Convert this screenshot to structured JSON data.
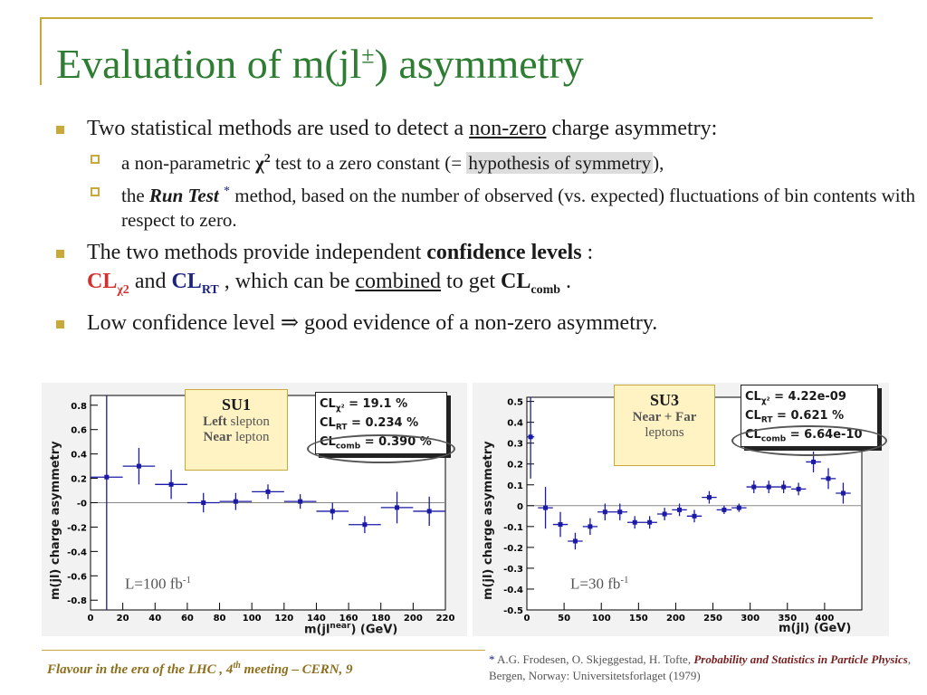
{
  "slide": {
    "title": "Evaluation of m(jl",
    "title_sup": "±",
    "title_end": ") asymmetry"
  },
  "bullets": {
    "b1_pre": "Two statistical methods are used to detect a ",
    "b1_ul": "non-zero",
    "b1_post": " charge asymmetry:",
    "s1_pre": "a non-parametric ",
    "s1_chi": "χ",
    "s1_sup": "2",
    "s1_mid": " test to a zero constant (= ",
    "s1_hl": "hypothesis of symmetry",
    "s1_post": "),",
    "s2_pre": "the ",
    "s2_bold": "Run Test",
    "s2_star": "*",
    "s2_post": " method, based on the number of observed (vs. expected) fluctuations of bin contents with respect to zero.",
    "b2_pre": "The two methods provide independent ",
    "b2_bold": "confidence levels",
    "b2_colon": " :",
    "b2_cl1": "CL",
    "b2_cl1_sub": "χ2",
    "b2_and": " and ",
    "b2_cl2": "CL",
    "b2_cl2_sub": "RT",
    "b2_mid": " , which can be ",
    "b2_ul": "combined",
    "b2_get": " to get ",
    "b2_cl3": "CL",
    "b2_cl3_sub": "comb",
    "b2_end": " .",
    "b3_pre": "Low confidence level ",
    "b3_arrow": "⇒",
    "b3_post": " good evidence of a non-zero asymmetry."
  },
  "panel1": {
    "ylabel": "m(jl) charge asymmetry",
    "xlabel": "m(jl",
    "xlabel_sup": "near",
    "xlabel_end": ")  (GeV)",
    "lumi": "L=100 fb",
    "lumi_sup": "-1",
    "su_title": "SU1",
    "su_line1_b": "Left",
    "su_line1": " slepton",
    "su_line2_b": "Near",
    "su_line2": " lepton",
    "cl_chi_label": "CL",
    "cl_chi_sub": "χ²",
    "cl_chi_val": " = 19.1 %",
    "cl_rt_label": "CL",
    "cl_rt_sub": "RT",
    "cl_rt_val": " = 0.234 %",
    "cl_comb_label": "CL",
    "cl_comb_sub": "comb",
    "cl_comb_val": " = 0.390 %"
  },
  "panel2": {
    "ylabel": "m(jl) charge asymmetry",
    "xlabel": "m(jl)  (GeV)",
    "lumi": "L=30 fb",
    "lumi_sup": "-1",
    "su_title": "SU3",
    "su_line1": "Near + Far",
    "su_line2": "leptons",
    "cl_chi_label": "CL",
    "cl_chi_sub": "χ²",
    "cl_chi_val": " = 4.22e-09",
    "cl_rt_label": "CL",
    "cl_rt_sub": "RT",
    "cl_rt_val": " = 0.621 %",
    "cl_comb_label": "CL",
    "cl_comb_sub": "comb",
    "cl_comb_val": " = 6.64e-10"
  },
  "footer": {
    "text_pre": "Flavour in the era of the LHC , 4",
    "text_sup": "th",
    "text_post": " meeting   –   CERN, 9"
  },
  "footnote": {
    "star": "*",
    "authors": " A.G. Frodesen, O. Skjeggestad, H. Tofte, ",
    "book": "Probability and Statistics in Particle Physics",
    "rest": ", Bergen, Norway: Universitetsforlaget (1979)"
  },
  "colors": {
    "title": "#2e7d32",
    "accent": "#c8a93c",
    "marker": "#1a1aa6",
    "cl_red": "#d32f2f",
    "cl_blue": "#1a237e"
  },
  "chart_data": [
    {
      "type": "scatter",
      "title": "",
      "xlabel": "m(jl^near) (GeV)",
      "ylabel": "m(jl) charge asymmetry",
      "xlim": [
        0,
        220
      ],
      "ylim": [
        -0.88,
        0.88
      ],
      "xticks": [
        0,
        20,
        40,
        60,
        80,
        100,
        120,
        140,
        160,
        180,
        200,
        220
      ],
      "yticks": [
        0.8,
        0.6,
        0.4,
        0.2,
        0,
        -0.2,
        -0.4,
        -0.6,
        -0.8
      ],
      "ytick_labels": [
        "0.8",
        "0.6",
        "0.4",
        "0.2",
        "-0",
        "-0.2",
        "-0.4",
        "-0.6",
        "-0.8"
      ],
      "points": [
        {
          "x": 10,
          "y": 0.21,
          "ex": 10,
          "ey": 1.09
        },
        {
          "x": 30,
          "y": 0.3,
          "ex": 10,
          "ey": 0.15
        },
        {
          "x": 50,
          "y": 0.15,
          "ex": 10,
          "ey": 0.12
        },
        {
          "x": 70,
          "y": 0.0,
          "ex": 10,
          "ey": 0.08
        },
        {
          "x": 90,
          "y": 0.01,
          "ex": 10,
          "ey": 0.07
        },
        {
          "x": 110,
          "y": 0.09,
          "ex": 10,
          "ey": 0.06
        },
        {
          "x": 130,
          "y": 0.01,
          "ex": 10,
          "ey": 0.06
        },
        {
          "x": 150,
          "y": -0.07,
          "ex": 10,
          "ey": 0.07
        },
        {
          "x": 170,
          "y": -0.18,
          "ex": 10,
          "ey": 0.07
        },
        {
          "x": 190,
          "y": -0.04,
          "ex": 10,
          "ey": 0.13
        },
        {
          "x": 210,
          "y": -0.07,
          "ex": 10,
          "ey": 0.12
        }
      ]
    },
    {
      "type": "scatter",
      "title": "",
      "xlabel": "m(jl) (GeV)",
      "ylabel": "m(jl) charge asymmetry",
      "xlim": [
        0,
        450
      ],
      "ylim": [
        -0.5,
        0.52
      ],
      "xticks": [
        0,
        50,
        100,
        150,
        200,
        250,
        300,
        350,
        400
      ],
      "yticks": [
        0.5,
        0.4,
        0.3,
        0.2,
        0.1,
        0,
        -0.1,
        -0.2,
        -0.3,
        -0.4,
        -0.5
      ],
      "ytick_labels": [
        "0.5",
        "0.4",
        "0.3",
        "0.2",
        "0.1",
        "0",
        "-0.1",
        "-0.2",
        "-0.3",
        "-0.4",
        "-0.5"
      ],
      "points": [
        {
          "x": 5,
          "y": 0.33,
          "ex": 5,
          "ey": 0.2
        },
        {
          "x": 25,
          "y": -0.01,
          "ex": 10,
          "ey": 0.1
        },
        {
          "x": 45,
          "y": -0.09,
          "ex": 10,
          "ey": 0.06
        },
        {
          "x": 65,
          "y": -0.17,
          "ex": 10,
          "ey": 0.04
        },
        {
          "x": 85,
          "y": -0.1,
          "ex": 10,
          "ey": 0.04
        },
        {
          "x": 105,
          "y": -0.03,
          "ex": 10,
          "ey": 0.04
        },
        {
          "x": 125,
          "y": -0.03,
          "ex": 10,
          "ey": 0.04
        },
        {
          "x": 145,
          "y": -0.08,
          "ex": 10,
          "ey": 0.03
        },
        {
          "x": 165,
          "y": -0.08,
          "ex": 10,
          "ey": 0.03
        },
        {
          "x": 185,
          "y": -0.04,
          "ex": 10,
          "ey": 0.03
        },
        {
          "x": 205,
          "y": -0.02,
          "ex": 10,
          "ey": 0.03
        },
        {
          "x": 225,
          "y": -0.05,
          "ex": 10,
          "ey": 0.03
        },
        {
          "x": 245,
          "y": 0.04,
          "ex": 10,
          "ey": 0.03
        },
        {
          "x": 265,
          "y": -0.02,
          "ex": 10,
          "ey": 0.02
        },
        {
          "x": 285,
          "y": -0.01,
          "ex": 10,
          "ey": 0.02
        },
        {
          "x": 305,
          "y": 0.09,
          "ex": 10,
          "ey": 0.03
        },
        {
          "x": 325,
          "y": 0.09,
          "ex": 10,
          "ey": 0.03
        },
        {
          "x": 345,
          "y": 0.09,
          "ex": 10,
          "ey": 0.03
        },
        {
          "x": 365,
          "y": 0.08,
          "ex": 10,
          "ey": 0.03
        },
        {
          "x": 385,
          "y": 0.21,
          "ex": 10,
          "ey": 0.05
        },
        {
          "x": 405,
          "y": 0.13,
          "ex": 10,
          "ey": 0.05
        },
        {
          "x": 425,
          "y": 0.06,
          "ex": 10,
          "ey": 0.05
        }
      ]
    }
  ]
}
